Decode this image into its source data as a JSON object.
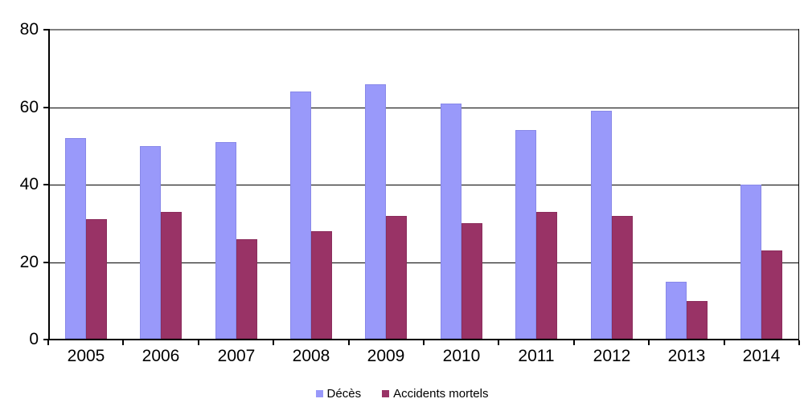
{
  "colors": {
    "background": "#FFFFFF",
    "grid": "#000000",
    "plot_top_border": "#808080",
    "axis": "#000000",
    "text": "#000000",
    "series1_fill": "#9999FA",
    "series1_edge": "#8888E8",
    "series2_fill": "#993366",
    "series2_edge": "#8B2D5C"
  },
  "chart_data": {
    "type": "bar",
    "title": "",
    "xlabel": "",
    "ylabel": "",
    "categories": [
      "2005",
      "2006",
      "2007",
      "2008",
      "2009",
      "2010",
      "2011",
      "2012",
      "2013",
      "2014"
    ],
    "series": [
      {
        "name": "Décès",
        "color": "#9999FA",
        "edge": "#8888E8",
        "values": [
          52,
          50,
          51,
          64,
          66,
          61,
          54,
          59,
          15,
          40
        ]
      },
      {
        "name": "Accidents mortels",
        "color": "#993366",
        "edge": "#8B2D5C",
        "values": [
          31,
          33,
          26,
          28,
          32,
          30,
          33,
          32,
          10,
          23
        ]
      }
    ],
    "ylim": [
      0,
      80
    ],
    "yticks": [
      0,
      20,
      40,
      60,
      80
    ],
    "grid": true,
    "legend_position": "bottom"
  }
}
